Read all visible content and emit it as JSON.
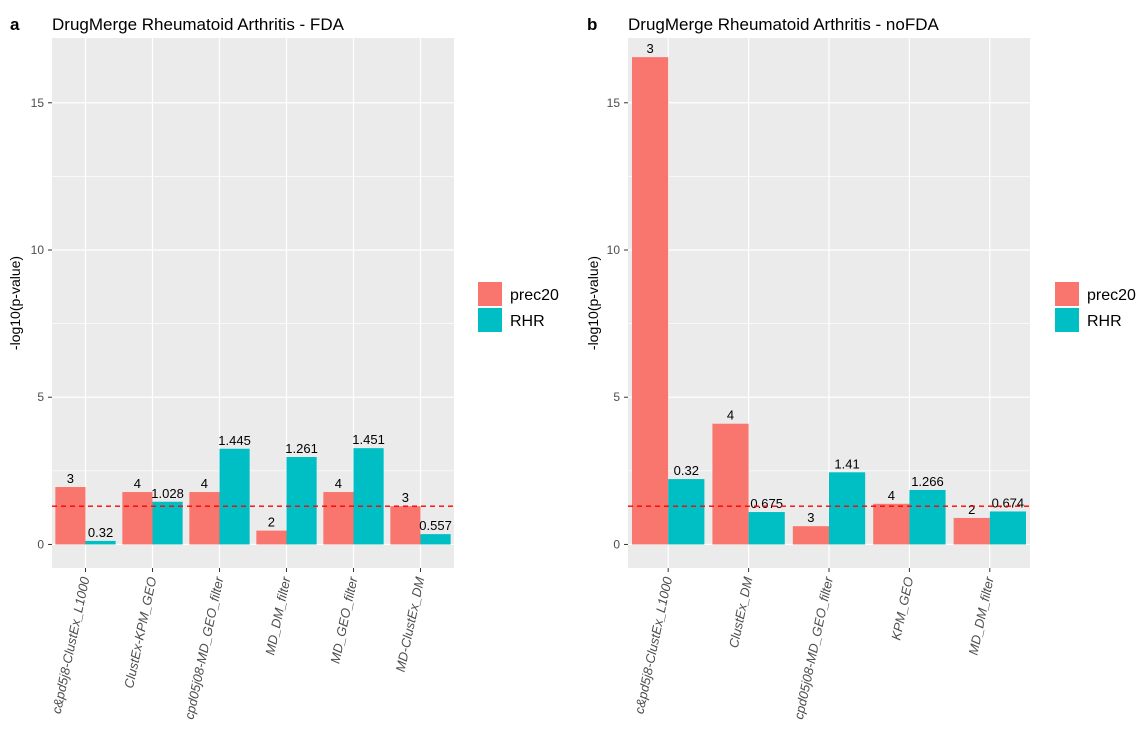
{
  "colors": {
    "prec20": "#F8766D",
    "RHR": "#00BFC4",
    "panel_bg": "#EBEBEB",
    "grid": "#FFFFFF",
    "threshold": "#FF0000"
  },
  "legend": {
    "entries": [
      "prec20",
      "RHR"
    ]
  },
  "chart_data": [
    {
      "type": "bar",
      "panel_label": "a",
      "title": "DrugMerge Rheumatoid Arthritis - FDA",
      "xlabel": "",
      "ylabel": "-log10(p-value)",
      "ylim": [
        -0.8,
        17.2
      ],
      "yticks": [
        "0",
        "5",
        "10",
        "15"
      ],
      "threshold": 1.3,
      "categories": [
        "c&pd5j8-ClustEx_L1000",
        "ClustEx-KPM_GEO",
        "cpd05j08-MD_GEO_filter",
        "MD_DM_filter",
        "MD_GEO_filter",
        "MD-ClustEx_DM"
      ],
      "series": [
        {
          "name": "prec20",
          "values": [
            1.95,
            1.78,
            1.78,
            0.47,
            1.78,
            1.3
          ],
          "labels": [
            "3",
            "4",
            "4",
            "2",
            "4",
            "3"
          ]
        },
        {
          "name": "RHR",
          "values": [
            0.12,
            1.45,
            3.25,
            2.97,
            3.27,
            0.35
          ],
          "labels": [
            "0.32",
            "1.028",
            "1.445",
            "1.261",
            "1.451",
            "0.557"
          ]
        }
      ]
    },
    {
      "type": "bar",
      "panel_label": "b",
      "title": "DrugMerge Rheumatoid Arthritis - noFDA",
      "xlabel": "",
      "ylabel": "-log10(p-value)",
      "ylim": [
        -0.8,
        17.2
      ],
      "yticks": [
        "0",
        "5",
        "10",
        "15"
      ],
      "threshold": 1.3,
      "categories": [
        "c&pd5j8-ClustEx_L1000",
        "ClustEx_DM",
        "cpd05j08-MD_GEO_filter",
        "KPM_GEO",
        "MD_DM_filter"
      ],
      "series": [
        {
          "name": "prec20",
          "values": [
            16.55,
            4.1,
            0.62,
            1.38,
            0.9
          ],
          "labels": [
            "3",
            "4",
            "3",
            "4",
            "2"
          ]
        },
        {
          "name": "RHR",
          "values": [
            2.22,
            1.1,
            2.45,
            1.85,
            1.12
          ],
          "labels": [
            "0.32",
            "0.675",
            "1.41",
            "1.266",
            "0.674"
          ]
        }
      ]
    }
  ]
}
